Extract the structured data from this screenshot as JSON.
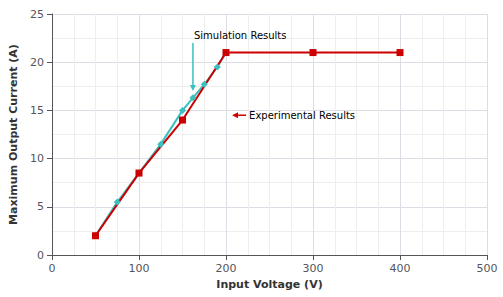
{
  "chart_data": {
    "type": "line",
    "xlabel": "Input Voltage (V)",
    "ylabel": "Maximum Output Current (A)",
    "series": [
      {
        "color": "#3bbfbf",
        "marker": "diamond",
        "line_style": "solid",
        "x": [
          50,
          75,
          100,
          125,
          150,
          162,
          175,
          190,
          200
        ],
        "values": [
          2,
          5.5,
          8.5,
          11.5,
          15,
          16.3,
          17.7,
          19.5,
          21
        ]
      },
      {
        "color": "#cc0000",
        "marker": "square",
        "line_style": "solid",
        "x": [
          50,
          100,
          150,
          200,
          300,
          400
        ],
        "values": [
          2,
          8.5,
          14,
          21,
          21,
          21
        ]
      }
    ],
    "annotations": [
      {
        "text": "Simulation Results",
        "x": 162,
        "y": 17.0
      },
      {
        "text": "Experimental Results",
        "x": 207,
        "y": 14.5
      }
    ],
    "xlim": [
      0,
      500
    ],
    "ylim": [
      0,
      25
    ],
    "xticks": [
      0,
      100,
      200,
      300,
      400,
      500
    ],
    "yticks": [
      0,
      5,
      10,
      15,
      20,
      25
    ],
    "grid": true
  }
}
